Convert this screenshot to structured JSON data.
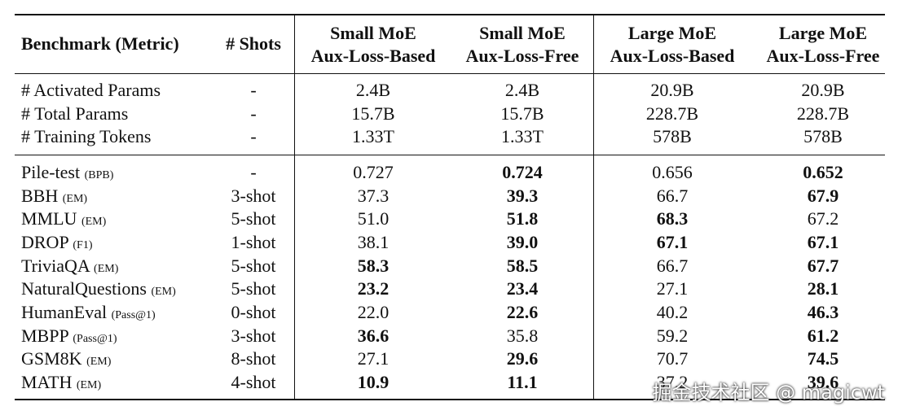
{
  "table": {
    "header": {
      "benchmark": "Benchmark (Metric)",
      "shots": "# Shots",
      "columns": [
        [
          "Small MoE",
          "Aux-Loss-Based"
        ],
        [
          "Small MoE",
          "Aux-Loss-Free"
        ],
        [
          "Large MoE",
          "Aux-Loss-Based"
        ],
        [
          "Large MoE",
          "Aux-Loss-Free"
        ]
      ]
    },
    "groups": [
      [
        {
          "name": "# Activated Params",
          "shots": "-",
          "values": [
            "2.4B",
            "2.4B",
            "20.9B",
            "20.9B"
          ]
        },
        {
          "name": "# Total Params",
          "shots": "-",
          "values": [
            "15.7B",
            "15.7B",
            "228.7B",
            "228.7B"
          ]
        },
        {
          "name": "# Training Tokens",
          "shots": "-",
          "values": [
            "1.33T",
            "1.33T",
            "578B",
            "578B"
          ]
        }
      ],
      [
        {
          "name": "Pile-test",
          "metric": "(BPB)",
          "shots": "-",
          "values": [
            "0.727",
            "0.724",
            "0.656",
            "0.652"
          ],
          "bold": [
            false,
            true,
            false,
            true
          ]
        },
        {
          "name": "BBH",
          "metric": "(EM)",
          "shots": "3-shot",
          "values": [
            "37.3",
            "39.3",
            "66.7",
            "67.9"
          ],
          "bold": [
            false,
            true,
            false,
            true
          ]
        },
        {
          "name": "MMLU",
          "metric": "(EM)",
          "shots": "5-shot",
          "values": [
            "51.0",
            "51.8",
            "68.3",
            "67.2"
          ],
          "bold": [
            false,
            true,
            true,
            false
          ]
        },
        {
          "name": "DROP",
          "metric": "(F1)",
          "shots": "1-shot",
          "values": [
            "38.1",
            "39.0",
            "67.1",
            "67.1"
          ],
          "bold": [
            false,
            true,
            true,
            true
          ]
        },
        {
          "name": "TriviaQA",
          "metric": "(EM)",
          "shots": "5-shot",
          "values": [
            "58.3",
            "58.5",
            "66.7",
            "67.7"
          ],
          "bold": [
            true,
            true,
            false,
            true
          ]
        },
        {
          "name": "NaturalQuestions",
          "metric": "(EM)",
          "shots": "5-shot",
          "values": [
            "23.2",
            "23.4",
            "27.1",
            "28.1"
          ],
          "bold": [
            true,
            true,
            false,
            true
          ]
        },
        {
          "name": "HumanEval",
          "metric": "(Pass@1)",
          "shots": "0-shot",
          "values": [
            "22.0",
            "22.6",
            "40.2",
            "46.3"
          ],
          "bold": [
            false,
            true,
            false,
            true
          ]
        },
        {
          "name": "MBPP",
          "metric": "(Pass@1)",
          "shots": "3-shot",
          "values": [
            "36.6",
            "35.8",
            "59.2",
            "61.2"
          ],
          "bold": [
            true,
            false,
            false,
            true
          ]
        },
        {
          "name": "GSM8K",
          "metric": "(EM)",
          "shots": "8-shot",
          "values": [
            "27.1",
            "29.6",
            "70.7",
            "74.5"
          ],
          "bold": [
            false,
            true,
            false,
            true
          ]
        },
        {
          "name": "MATH",
          "metric": "(EM)",
          "shots": "4-shot",
          "values": [
            "10.9",
            "11.1",
            "37.2",
            "39.6"
          ],
          "bold": [
            true,
            true,
            false,
            true
          ]
        }
      ]
    ]
  },
  "watermark": "掘金技术社区 @ magicwt"
}
